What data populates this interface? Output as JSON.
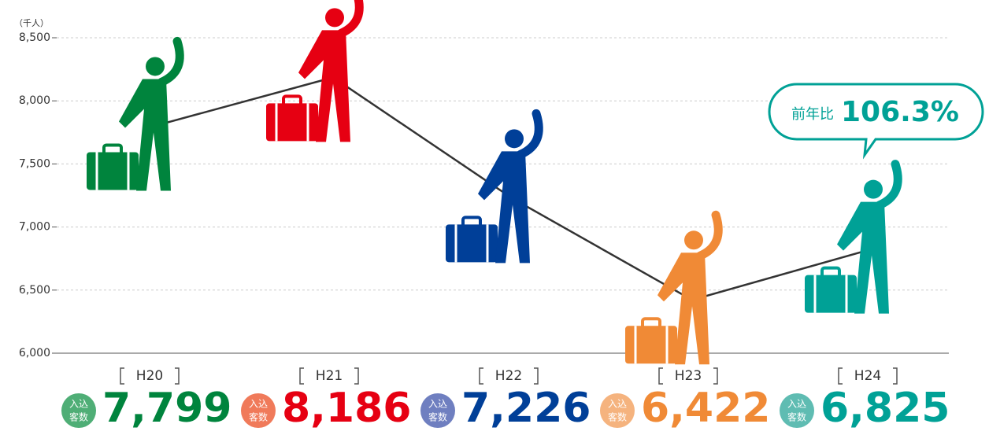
{
  "chart_data": {
    "type": "line",
    "unit_label": "（千人）",
    "categories": [
      "H20",
      "H21",
      "H22",
      "H23",
      "H24"
    ],
    "values": [
      7799,
      8186,
      7226,
      6422,
      6825
    ],
    "value_labels": [
      "7,799",
      "8,186",
      "7,226",
      "6,422",
      "6,825"
    ],
    "colors": [
      "#00843d",
      "#e60012",
      "#003f98",
      "#f08a36",
      "#00a196"
    ],
    "badge_colors": [
      "#4fae76",
      "#f07a5a",
      "#6f7fc0",
      "#f5b37e",
      "#5fbcb2"
    ],
    "line_color": "#333333",
    "badge_label": [
      "入込",
      "客数"
    ],
    "ylim": [
      6000,
      8500
    ],
    "yticks": [
      {
        "value": 6000,
        "label": "6,000"
      },
      {
        "value": 6500,
        "label": "6,500"
      },
      {
        "value": 7000,
        "label": "7,000"
      },
      {
        "value": 7500,
        "label": "7,500"
      },
      {
        "value": 8000,
        "label": "8,000"
      },
      {
        "value": 8500,
        "label": "8,500"
      }
    ],
    "grid": true,
    "annotation": {
      "prefix": "前年比",
      "text": "106.3%",
      "color": "#00a196"
    }
  }
}
